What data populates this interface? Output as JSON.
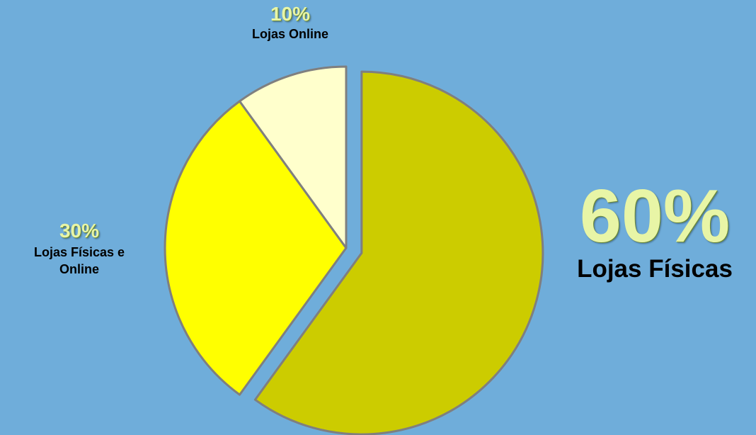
{
  "chart_data": {
    "type": "pie",
    "categories": [
      "Lojas Físicas",
      "Lojas Físicas e Online",
      "Lojas Online"
    ],
    "values": [
      60,
      30,
      10
    ],
    "value_labels": [
      "60%",
      "30%",
      "10%"
    ],
    "colors": [
      "#cccc00",
      "#ffff00",
      "#ffffcc"
    ]
  }
}
